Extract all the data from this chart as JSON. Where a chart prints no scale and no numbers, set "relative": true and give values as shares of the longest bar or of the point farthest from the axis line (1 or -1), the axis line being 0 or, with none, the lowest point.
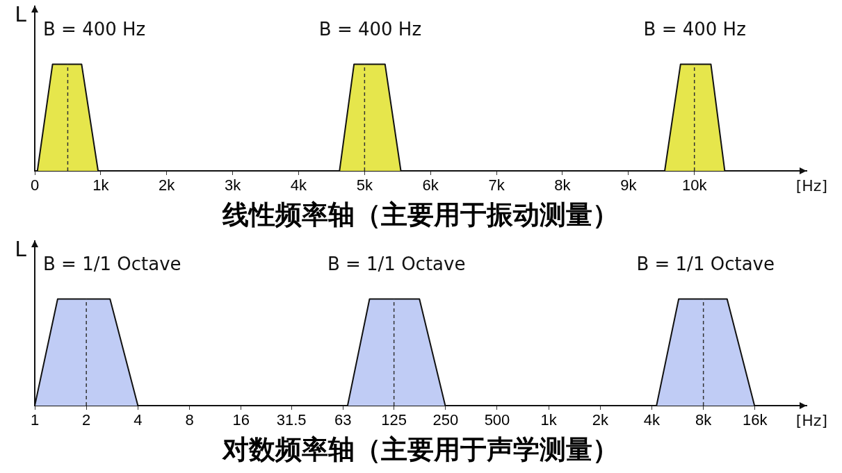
{
  "chart_data": [
    {
      "type": "area",
      "title": "线性频率轴（主要用于振动测量）",
      "xlabel": "[Hz]",
      "ylabel": "L",
      "relative": true,
      "tick_labels": "x",
      "marker": "none",
      "grid": false,
      "legend": false,
      "xlim": [
        0,
        11700
      ],
      "xticks": [
        0,
        {
          "value": 1000,
          "label": "1k"
        },
        {
          "value": 2000,
          "label": "2k"
        },
        {
          "value": 3000,
          "label": "3k"
        },
        {
          "value": 4000,
          "label": "4k"
        },
        {
          "value": 5000,
          "label": "5k"
        },
        {
          "value": 6000,
          "label": "6k"
        },
        {
          "value": 7000,
          "label": "7k"
        },
        {
          "value": 8000,
          "label": "8k"
        },
        {
          "value": 9000,
          "label": "9k"
        },
        {
          "value": 10000,
          "label": "10k"
        }
      ],
      "series": [
        {
          "color": "#e6e64c",
          "x": [
            40,
            270,
            710,
            960
          ],
          "values": [
            0,
            1,
            1,
            0
          ]
        },
        {
          "color": "#e6e64c",
          "x": [
            4620,
            4840,
            5310,
            5550
          ],
          "values": [
            0,
            1,
            1,
            0
          ]
        },
        {
          "color": "#e6e64c",
          "x": [
            9550,
            9790,
            10250,
            10460
          ],
          "values": [
            0,
            1,
            1,
            0
          ]
        }
      ],
      "ref_lines": [
        {
          "axis": "x",
          "value": 500,
          "color": "#333333",
          "line_style": "dashed"
        },
        {
          "axis": "x",
          "value": 5000,
          "color": "#333333",
          "line_style": "dashed"
        },
        {
          "axis": "x",
          "value": 10000,
          "color": "#333333",
          "line_style": "dashed"
        }
      ],
      "annotations": [
        "B = 400 Hz",
        "B = 400 Hz",
        "B = 400 Hz"
      ]
    },
    {
      "type": "area",
      "title": "对数频率轴（主要用于声学测量）",
      "xlabel": "[Hz]",
      "ylabel": "L",
      "relative": true,
      "tick_labels": "x",
      "marker": "none",
      "grid": false,
      "legend": false,
      "log": "x",
      "xlim": [
        1,
        32000
      ],
      "xticks": [
        1,
        2,
        4,
        8,
        16,
        31.5,
        63,
        125,
        250,
        500,
        {
          "value": 1000,
          "label": "1k"
        },
        {
          "value": 2000,
          "label": "2k"
        },
        {
          "value": 4000,
          "label": "4k"
        },
        {
          "value": 8000,
          "label": "8k"
        },
        {
          "value": 16000,
          "label": "16k"
        }
      ],
      "series": [
        {
          "color": "#c0ccf5",
          "x": [
            1,
            1.36,
            2.75,
            4
          ],
          "values": [
            0,
            1,
            1,
            0
          ]
        },
        {
          "color": "#c0ccf5",
          "x": [
            67,
            90,
            176,
            249
          ],
          "values": [
            0,
            1,
            1,
            0
          ]
        },
        {
          "color": "#c0ccf5",
          "x": [
            4260,
            5740,
            11000,
            15900
          ],
          "values": [
            0,
            1,
            1,
            0
          ]
        }
      ],
      "ref_lines": [
        {
          "axis": "x",
          "value": 2,
          "color": "#333333",
          "line_style": "dashed"
        },
        {
          "axis": "x",
          "value": 125,
          "color": "#333333",
          "line_style": "dashed"
        },
        {
          "axis": "x",
          "value": 8000,
          "color": "#333333",
          "line_style": "dashed"
        }
      ],
      "annotations": [
        "B = 1/1 Octave",
        "B = 1/1 Octave",
        "B = 1/1 Octave"
      ]
    }
  ]
}
